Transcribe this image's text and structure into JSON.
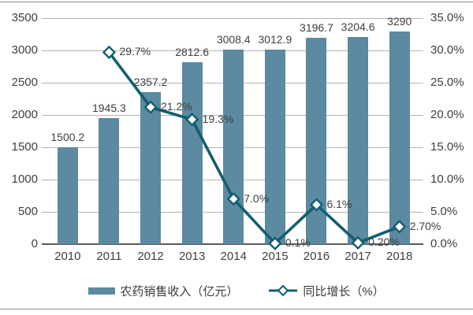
{
  "chart_data": {
    "type": "bar+line combo",
    "title": "",
    "categories": [
      "2010",
      "2011",
      "2012",
      "2013",
      "2014",
      "2015",
      "2016",
      "2017",
      "2018"
    ],
    "series": [
      {
        "name": "农药销售收入（亿元）",
        "type": "bar",
        "axis": "left",
        "color": "#5b8aa1",
        "values": [
          1500.2,
          1945.3,
          2357.2,
          2812.6,
          3008.4,
          3012.9,
          3196.7,
          3204.6,
          3290
        ],
        "labels": [
          "1500.2",
          "1945.3",
          "2357.2",
          "2812.6",
          "3008.4",
          "3012.9",
          "3196.7",
          "3204.6",
          "3290"
        ]
      },
      {
        "name": "同比增长（%）",
        "type": "line",
        "axis": "right",
        "color": "#135e70",
        "marker": "diamond",
        "marker_fill": "#ffffff",
        "values": [
          null,
          29.7,
          21.2,
          19.3,
          7.0,
          0.1,
          6.1,
          0.2,
          2.7
        ],
        "labels": [
          null,
          "29.7%",
          "21.2%",
          "19.3%",
          "7.0%",
          "0.1%",
          "6.1%",
          "0.20%",
          "2.70%"
        ]
      }
    ],
    "left_axis": {
      "min": 0,
      "max": 3500,
      "step": 500,
      "ticks": [
        "0",
        "500",
        "1000",
        "1500",
        "2000",
        "2500",
        "3000",
        "3500"
      ]
    },
    "right_axis": {
      "min": 0,
      "max": 35,
      "step": 5,
      "ticks": [
        "0.0%",
        "5.0%",
        "10.0%",
        "15.0%",
        "20.0%",
        "25.0%",
        "30.0%",
        "35.0%"
      ]
    },
    "grid": true,
    "legend_position": "bottom"
  },
  "style": {
    "text_color": "#3f3f3f",
    "gridline_color": "#b5b5b5",
    "axis_line_color": "#595959",
    "divider_color": "#8f8f8f",
    "background": "#ffffff"
  }
}
